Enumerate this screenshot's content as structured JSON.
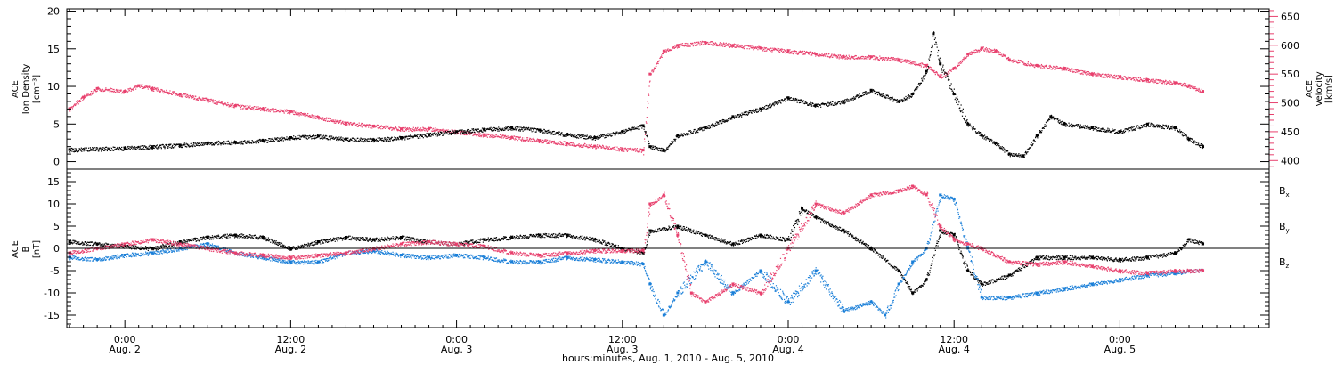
{
  "chart_data": [
    {
      "type": "scatter",
      "panel": "top",
      "ylabel_left": [
        "ACE",
        "Ion Density",
        "[cm⁻³]"
      ],
      "ylabel_right": [
        "ACE",
        "Velocity",
        "[km/s]"
      ],
      "left_axis": {
        "ylim": [
          -1,
          20.3
        ],
        "ticks": [
          0,
          5,
          10,
          15,
          20
        ]
      },
      "right_axis": {
        "ylim": [
          385,
          663
        ],
        "ticks": [
          400,
          450,
          500,
          550,
          600,
          650
        ]
      },
      "series": [
        {
          "key": "density",
          "axis": "left",
          "color": "#000000",
          "points": [
            [
              -4,
              1.6
            ],
            [
              0,
              1.8
            ],
            [
              2,
              2.0
            ],
            [
              4,
              2.2
            ],
            [
              6,
              2.5
            ],
            [
              8,
              2.6
            ],
            [
              10,
              2.8
            ],
            [
              12,
              3.2
            ],
            [
              14,
              3.4
            ],
            [
              16,
              3.0
            ],
            [
              18,
              2.9
            ],
            [
              20,
              3.2
            ],
            [
              22,
              3.6
            ],
            [
              24,
              4.0
            ],
            [
              26,
              4.3
            ],
            [
              28,
              4.5
            ],
            [
              30,
              4.2
            ],
            [
              32,
              3.6
            ],
            [
              34,
              3.2
            ],
            [
              36,
              4.0
            ],
            [
              37.5,
              4.8
            ],
            [
              38,
              2.0
            ],
            [
              39,
              1.5
            ],
            [
              40,
              3.5
            ],
            [
              42,
              4.5
            ],
            [
              44,
              6.0
            ],
            [
              46,
              7.0
            ],
            [
              48,
              8.5
            ],
            [
              50,
              7.5
            ],
            [
              52,
              8.0
            ],
            [
              54,
              9.5
            ],
            [
              56,
              8.0
            ],
            [
              57,
              9.0
            ],
            [
              58,
              12.0
            ],
            [
              58.5,
              17.0
            ],
            [
              59,
              13.0
            ],
            [
              60,
              9.0
            ],
            [
              61,
              5.0
            ],
            [
              62,
              3.5
            ],
            [
              63,
              2.5
            ],
            [
              64,
              1.0
            ],
            [
              65,
              0.8
            ],
            [
              66,
              3.5
            ],
            [
              67,
              6.0
            ],
            [
              68,
              5.0
            ],
            [
              70,
              4.5
            ],
            [
              72,
              4.0
            ],
            [
              74,
              5.0
            ],
            [
              76,
              4.5
            ],
            [
              77,
              3.0
            ],
            [
              78,
              2.0
            ]
          ]
        },
        {
          "key": "velocity",
          "axis": "right",
          "color": "#e8416e",
          "points": [
            [
              -4,
              490
            ],
            [
              -3,
              510
            ],
            [
              -2,
              525
            ],
            [
              0,
              520
            ],
            [
              1,
              530
            ],
            [
              2,
              525
            ],
            [
              4,
              515
            ],
            [
              6,
              505
            ],
            [
              8,
              495
            ],
            [
              10,
              490
            ],
            [
              12,
              485
            ],
            [
              14,
              475
            ],
            [
              16,
              465
            ],
            [
              18,
              460
            ],
            [
              20,
              455
            ],
            [
              22,
              455
            ],
            [
              24,
              450
            ],
            [
              26,
              445
            ],
            [
              28,
              440
            ],
            [
              30,
              435
            ],
            [
              32,
              430
            ],
            [
              34,
              425
            ],
            [
              36,
              420
            ],
            [
              37.5,
              418
            ],
            [
              38,
              550
            ],
            [
              39,
              590
            ],
            [
              40,
              600
            ],
            [
              42,
              605
            ],
            [
              44,
              600
            ],
            [
              46,
              595
            ],
            [
              48,
              590
            ],
            [
              50,
              585
            ],
            [
              52,
              580
            ],
            [
              54,
              580
            ],
            [
              56,
              575
            ],
            [
              58,
              565
            ],
            [
              59,
              545
            ],
            [
              60,
              560
            ],
            [
              61,
              585
            ],
            [
              62,
              595
            ],
            [
              63,
              590
            ],
            [
              64,
              575
            ],
            [
              66,
              565
            ],
            [
              68,
              560
            ],
            [
              70,
              550
            ],
            [
              72,
              545
            ],
            [
              74,
              540
            ],
            [
              76,
              535
            ],
            [
              77,
              530
            ],
            [
              78,
              520
            ]
          ]
        }
      ]
    },
    {
      "type": "scatter",
      "panel": "bottom",
      "ylabel": [
        "ACE",
        "B",
        "[nT]"
      ],
      "ylim": [
        -17.8,
        17.8
      ],
      "ticks": [
        -15,
        -10,
        -5,
        0,
        5,
        10,
        15
      ],
      "zero_line": true,
      "legend": {
        "placement": "right",
        "entries": [
          "Bx",
          "By",
          "Bz"
        ]
      },
      "series": [
        {
          "key": "bx",
          "label": "B",
          "sub": "x",
          "color": "#000000",
          "points": [
            [
              -4,
              1.5
            ],
            [
              -2,
              1.0
            ],
            [
              0,
              0.5
            ],
            [
              2,
              0.0
            ],
            [
              4,
              1.5
            ],
            [
              6,
              2.5
            ],
            [
              8,
              3.0
            ],
            [
              10,
              2.5
            ],
            [
              12,
              0.0
            ],
            [
              14,
              1.5
            ],
            [
              16,
              2.5
            ],
            [
              18,
              2.0
            ],
            [
              20,
              2.5
            ],
            [
              22,
              1.5
            ],
            [
              24,
              1.0
            ],
            [
              26,
              2.0
            ],
            [
              28,
              2.5
            ],
            [
              30,
              3.0
            ],
            [
              32,
              3.0
            ],
            [
              34,
              2.0
            ],
            [
              36,
              0.0
            ],
            [
              37.5,
              -1.0
            ],
            [
              38,
              4.0
            ],
            [
              40,
              5.0
            ],
            [
              42,
              3.0
            ],
            [
              44,
              1.0
            ],
            [
              46,
              3.0
            ],
            [
              48,
              2.0
            ],
            [
              49,
              9.0
            ],
            [
              50,
              7.0
            ],
            [
              52,
              4.0
            ],
            [
              54,
              0.0
            ],
            [
              56,
              -5.0
            ],
            [
              57,
              -10.0
            ],
            [
              58,
              -7.0
            ],
            [
              59,
              4.0
            ],
            [
              60,
              3.0
            ],
            [
              61,
              -5.0
            ],
            [
              62,
              -8.0
            ],
            [
              64,
              -6.0
            ],
            [
              66,
              -2.0
            ],
            [
              68,
              -2.0
            ],
            [
              70,
              -2.0
            ],
            [
              72,
              -2.5
            ],
            [
              74,
              -2.0
            ],
            [
              76,
              -1.0
            ],
            [
              77,
              2.0
            ],
            [
              78,
              1.0
            ]
          ]
        },
        {
          "key": "by",
          "label": "B",
          "sub": "y",
          "color": "#1a7fd8",
          "points": [
            [
              -4,
              -2.0
            ],
            [
              -2,
              -2.5
            ],
            [
              0,
              -1.5
            ],
            [
              2,
              -1.0
            ],
            [
              4,
              0.0
            ],
            [
              6,
              1.0
            ],
            [
              8,
              -1.0
            ],
            [
              10,
              -2.0
            ],
            [
              12,
              -3.0
            ],
            [
              14,
              -3.0
            ],
            [
              16,
              -1.0
            ],
            [
              18,
              -0.5
            ],
            [
              20,
              -1.5
            ],
            [
              22,
              -2.0
            ],
            [
              24,
              -1.5
            ],
            [
              26,
              -2.0
            ],
            [
              28,
              -3.0
            ],
            [
              30,
              -3.0
            ],
            [
              32,
              -2.0
            ],
            [
              34,
              -2.5
            ],
            [
              36,
              -3.0
            ],
            [
              37.5,
              -3.5
            ],
            [
              38,
              -8.0
            ],
            [
              39,
              -15.0
            ],
            [
              40,
              -10.0
            ],
            [
              42,
              -3.0
            ],
            [
              44,
              -10.0
            ],
            [
              46,
              -5.0
            ],
            [
              48,
              -12.0
            ],
            [
              50,
              -5.0
            ],
            [
              52,
              -14.0
            ],
            [
              54,
              -12.0
            ],
            [
              55,
              -15.0
            ],
            [
              56,
              -8.0
            ],
            [
              57,
              -3.0
            ],
            [
              58,
              0.0
            ],
            [
              59,
              12.0
            ],
            [
              60,
              11.0
            ],
            [
              61,
              0.0
            ],
            [
              62,
              -11.0
            ],
            [
              64,
              -11.0
            ],
            [
              66,
              -10.0
            ],
            [
              68,
              -9.0
            ],
            [
              70,
              -8.0
            ],
            [
              72,
              -7.0
            ],
            [
              74,
              -6.0
            ],
            [
              76,
              -5.5
            ],
            [
              77,
              -5.0
            ],
            [
              78,
              -5.0
            ]
          ]
        },
        {
          "key": "bz",
          "label": "B",
          "sub": "z",
          "color": "#e8416e",
          "points": [
            [
              -4,
              -1.0
            ],
            [
              -2,
              0.0
            ],
            [
              0,
              1.0
            ],
            [
              2,
              2.0
            ],
            [
              4,
              1.0
            ],
            [
              6,
              0.0
            ],
            [
              8,
              -1.0
            ],
            [
              10,
              -1.5
            ],
            [
              12,
              -2.0
            ],
            [
              14,
              -1.5
            ],
            [
              16,
              -1.0
            ],
            [
              18,
              0.0
            ],
            [
              20,
              1.0
            ],
            [
              22,
              1.5
            ],
            [
              24,
              1.0
            ],
            [
              26,
              0.5
            ],
            [
              28,
              -1.0
            ],
            [
              30,
              -1.5
            ],
            [
              32,
              -1.0
            ],
            [
              34,
              -0.5
            ],
            [
              36,
              -0.5
            ],
            [
              37.5,
              -0.5
            ],
            [
              38,
              10.0
            ],
            [
              39,
              12.0
            ],
            [
              40,
              3.0
            ],
            [
              41,
              -10.0
            ],
            [
              42,
              -12.0
            ],
            [
              44,
              -8.0
            ],
            [
              46,
              -10.0
            ],
            [
              48,
              0.0
            ],
            [
              50,
              10.0
            ],
            [
              52,
              8.0
            ],
            [
              54,
              12.0
            ],
            [
              56,
              13.0
            ],
            [
              57,
              14.0
            ],
            [
              58,
              12.0
            ],
            [
              59,
              5.0
            ],
            [
              60,
              2.0
            ],
            [
              61,
              1.0
            ],
            [
              62,
              0.0
            ],
            [
              64,
              -3.0
            ],
            [
              66,
              -3.5
            ],
            [
              68,
              -3.0
            ],
            [
              70,
              -4.0
            ],
            [
              72,
              -5.0
            ],
            [
              74,
              -5.5
            ],
            [
              76,
              -5.0
            ],
            [
              77,
              -5.0
            ],
            [
              78,
              -5.0
            ]
          ]
        }
      ]
    }
  ],
  "x_axis": {
    "xlim": [
      -4.2,
      82.8
    ],
    "ticks": [
      {
        "h": 0,
        "time": "0:00",
        "date": "Aug. 2"
      },
      {
        "h": 12,
        "time": "12:00",
        "date": "Aug. 2"
      },
      {
        "h": 24,
        "time": "0:00",
        "date": "Aug. 3"
      },
      {
        "h": 36,
        "time": "12:00",
        "date": "Aug. 3"
      },
      {
        "h": 48,
        "time": "0:00",
        "date": "Aug. 4"
      },
      {
        "h": 60,
        "time": "12:00",
        "date": "Aug. 4"
      },
      {
        "h": 72,
        "time": "0:00",
        "date": "Aug. 5"
      }
    ],
    "title": "hours:minutes, Aug.  1, 2010 - Aug.  5, 2010"
  }
}
